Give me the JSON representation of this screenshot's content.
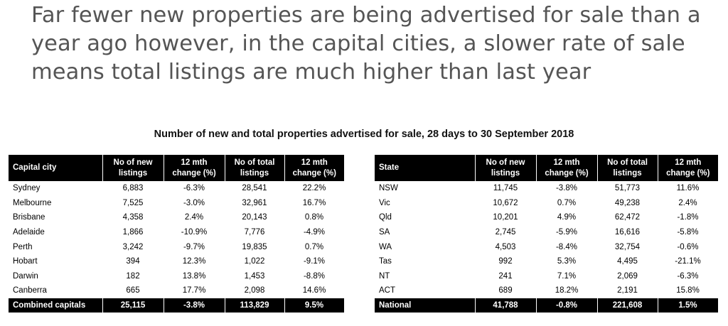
{
  "headline": "Far fewer new properties are being advertised for sale than a year ago however, in the capital cities, a slower rate of sale means total listings are much higher than last year",
  "subtitle": "Number of new and total properties advertised for sale, 28 days to 30 September 2018",
  "left_table": {
    "headers": [
      "Capital city",
      "No of new listings",
      "12 mth change (%)",
      "No of total listings",
      "12 mth change (%)"
    ],
    "rows": [
      [
        "Sydney",
        "6,883",
        "-6.3%",
        "28,541",
        "22.2%"
      ],
      [
        "Melbourne",
        "7,525",
        "-3.0%",
        "32,961",
        "16.7%"
      ],
      [
        "Brisbane",
        "4,358",
        "2.4%",
        "20,143",
        "0.8%"
      ],
      [
        "Adelaide",
        "1,866",
        "-10.9%",
        "7,776",
        "-4.9%"
      ],
      [
        "Perth",
        "3,242",
        "-9.7%",
        "19,835",
        "0.7%"
      ],
      [
        "Hobart",
        "394",
        "12.3%",
        "1,022",
        "-9.1%"
      ],
      [
        "Darwin",
        "182",
        "13.8%",
        "1,453",
        "-8.8%"
      ],
      [
        "Canberra",
        "665",
        "17.7%",
        "2,098",
        "14.6%"
      ]
    ],
    "total": [
      "Combined capitals",
      "25,115",
      "-3.8%",
      "113,829",
      "9.5%"
    ]
  },
  "right_table": {
    "headers": [
      "State",
      "No of new listings",
      "12 mth change (%)",
      "No of total listings",
      "12 mth change (%)"
    ],
    "rows": [
      [
        "NSW",
        "11,745",
        "-3.8%",
        "51,773",
        "11.6%"
      ],
      [
        "Vic",
        "10,672",
        "0.7%",
        "49,238",
        "2.4%"
      ],
      [
        "Qld",
        "10,201",
        "4.9%",
        "62,472",
        "-1.8%"
      ],
      [
        "SA",
        "2,745",
        "-5.9%",
        "16,616",
        "-5.8%"
      ],
      [
        "WA",
        "4,503",
        "-8.4%",
        "32,754",
        "-0.6%"
      ],
      [
        "Tas",
        "992",
        "5.3%",
        "4,495",
        "-21.1%"
      ],
      [
        "NT",
        "241",
        "7.1%",
        "2,069",
        "-6.3%"
      ],
      [
        "ACT",
        "689",
        "18.2%",
        "2,191",
        "15.8%"
      ]
    ],
    "total": [
      "National",
      "41,788",
      "-0.8%",
      "221,608",
      "1.5%"
    ]
  }
}
